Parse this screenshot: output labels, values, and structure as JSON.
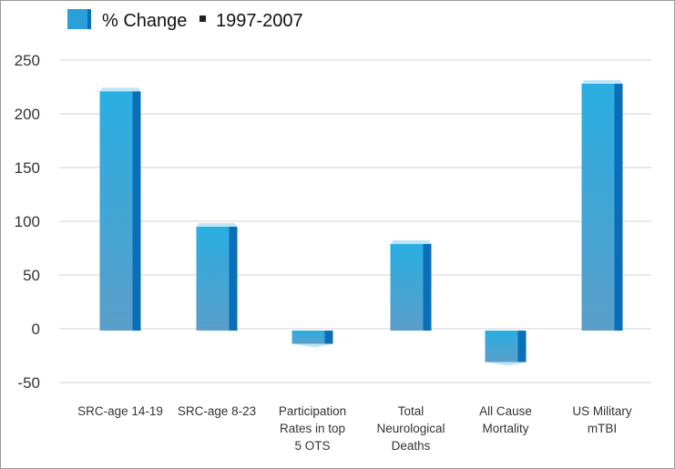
{
  "chart_data": {
    "type": "bar",
    "legend": {
      "series_label": "% Change",
      "period_label": "1997-2007",
      "position": "top-left"
    },
    "categories": [
      [
        "SRC-age 14-19"
      ],
      [
        "SRC-age 8-23"
      ],
      [
        "Participation",
        "Rates in top",
        "5 OTS"
      ],
      [
        "Total",
        "Neurological",
        "Deaths"
      ],
      [
        "All Cause",
        "Mortality"
      ],
      [
        "US Military",
        "mTBI"
      ]
    ],
    "series": [
      {
        "name": "% Change 1997-2007",
        "values": [
          221,
          95,
          -14,
          79,
          -31,
          228
        ]
      }
    ],
    "ylim": [
      -50,
      250
    ],
    "yticks": [
      -50,
      0,
      50,
      100,
      150,
      200,
      250
    ],
    "grid": true,
    "colors": {
      "bar_front_top": "#2aaee2",
      "bar_front_bottom": "#5a9ec9",
      "bar_side": "#0a6fb8",
      "bar_cap": "#bfe6f7",
      "grid": "#e2e2e2",
      "legend_swatch": "#2a9fd8",
      "legend_bullet": "#222222"
    }
  }
}
